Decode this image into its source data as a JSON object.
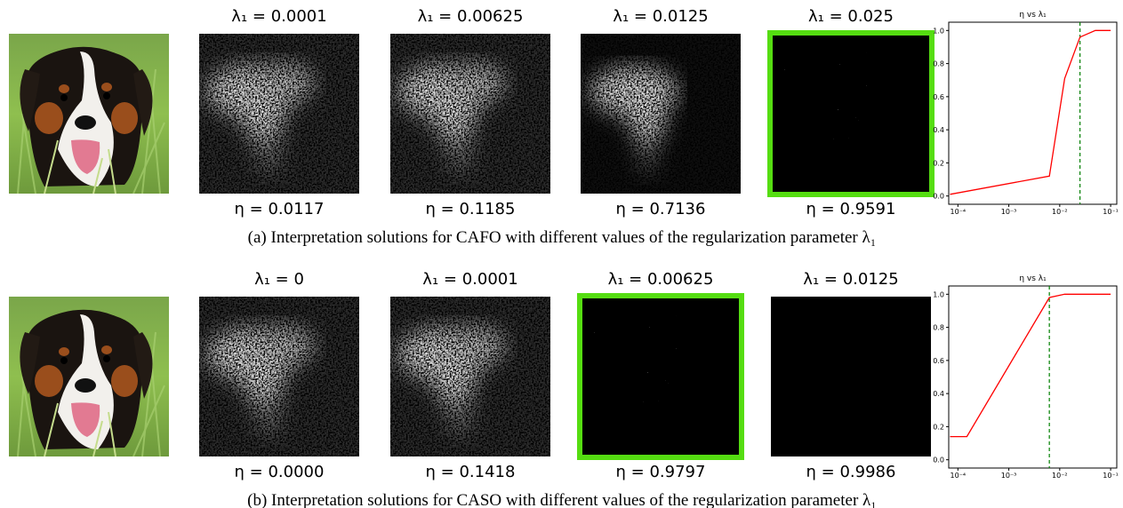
{
  "figures": [
    {
      "panels": [
        {
          "lambda_label": "λ₁ = 0.0001",
          "eta_label": "η = 0.0117",
          "highlight": false
        },
        {
          "lambda_label": "λ₁ = 0.00625",
          "eta_label": "η = 0.1185",
          "highlight": false
        },
        {
          "lambda_label": "λ₁ = 0.0125",
          "eta_label": "η = 0.7136",
          "highlight": false
        },
        {
          "lambda_label": "λ₁ = 0.025",
          "eta_label": "η = 0.9591",
          "highlight": true
        }
      ],
      "caption": "(a) Interpretation solutions for CAFO with different values of the regularization parameter λ₁"
    },
    {
      "panels": [
        {
          "lambda_label": "λ₁ = 0",
          "eta_label": "η = 0.0000",
          "highlight": false
        },
        {
          "lambda_label": "λ₁ = 0.0001",
          "eta_label": "η = 0.1418",
          "highlight": false
        },
        {
          "lambda_label": "λ₁ = 0.00625",
          "eta_label": "η = 0.9797",
          "highlight": true
        },
        {
          "lambda_label": "λ₁ = 0.0125",
          "eta_label": "η = 0.9986",
          "highlight": false
        }
      ],
      "caption": "(b) Interpretation solutions for CASO with different values of the regularization parameter λ₁"
    }
  ],
  "highlight_color": "#55dd11",
  "chart_data": [
    {
      "type": "line",
      "title": "η vs λ₁",
      "xscale": "log",
      "x": [
        7e-05,
        0.00625,
        0.0125,
        0.025,
        0.05,
        0.1
      ],
      "values": [
        0.01,
        0.12,
        0.71,
        0.96,
        1.0,
        1.0
      ],
      "color": "#ff0000",
      "vline": 0.025,
      "vline_color": "#008000",
      "xlim": [
        6.6e-05,
        0.132
      ],
      "ylim": [
        -0.05,
        1.05
      ],
      "xticks": [
        {
          "value": 0.0001,
          "label": "10⁻⁴"
        },
        {
          "value": 0.001,
          "label": "10⁻³"
        },
        {
          "value": 0.01,
          "label": "10⁻²"
        },
        {
          "value": 0.1,
          "label": "10⁻¹"
        }
      ],
      "yticks": [
        {
          "value": 0,
          "label": "0.0"
        },
        0.2,
        0.4,
        0.6,
        0.8,
        {
          "value": 1,
          "label": "1.0"
        }
      ]
    },
    {
      "type": "line",
      "title": "η vs λ₁",
      "xscale": "log",
      "x": [
        7e-05,
        0.00015,
        0.00625,
        0.0125,
        0.1
      ],
      "values": [
        0.14,
        0.14,
        0.98,
        1.0,
        1.0
      ],
      "color": "#ff0000",
      "vline": 0.00625,
      "vline_color": "#008000",
      "xlim": [
        6.6e-05,
        0.132
      ],
      "ylim": [
        -0.05,
        1.05
      ],
      "xticks": [
        {
          "value": 0.0001,
          "label": "10⁻⁴"
        },
        {
          "value": 0.001,
          "label": "10⁻³"
        },
        {
          "value": 0.01,
          "label": "10⁻²"
        },
        {
          "value": 0.1,
          "label": "10⁻¹"
        }
      ],
      "yticks": [
        {
          "value": 0,
          "label": "0.0"
        },
        0.2,
        0.4,
        0.6,
        0.8,
        {
          "value": 1,
          "label": "1.0"
        }
      ]
    }
  ]
}
